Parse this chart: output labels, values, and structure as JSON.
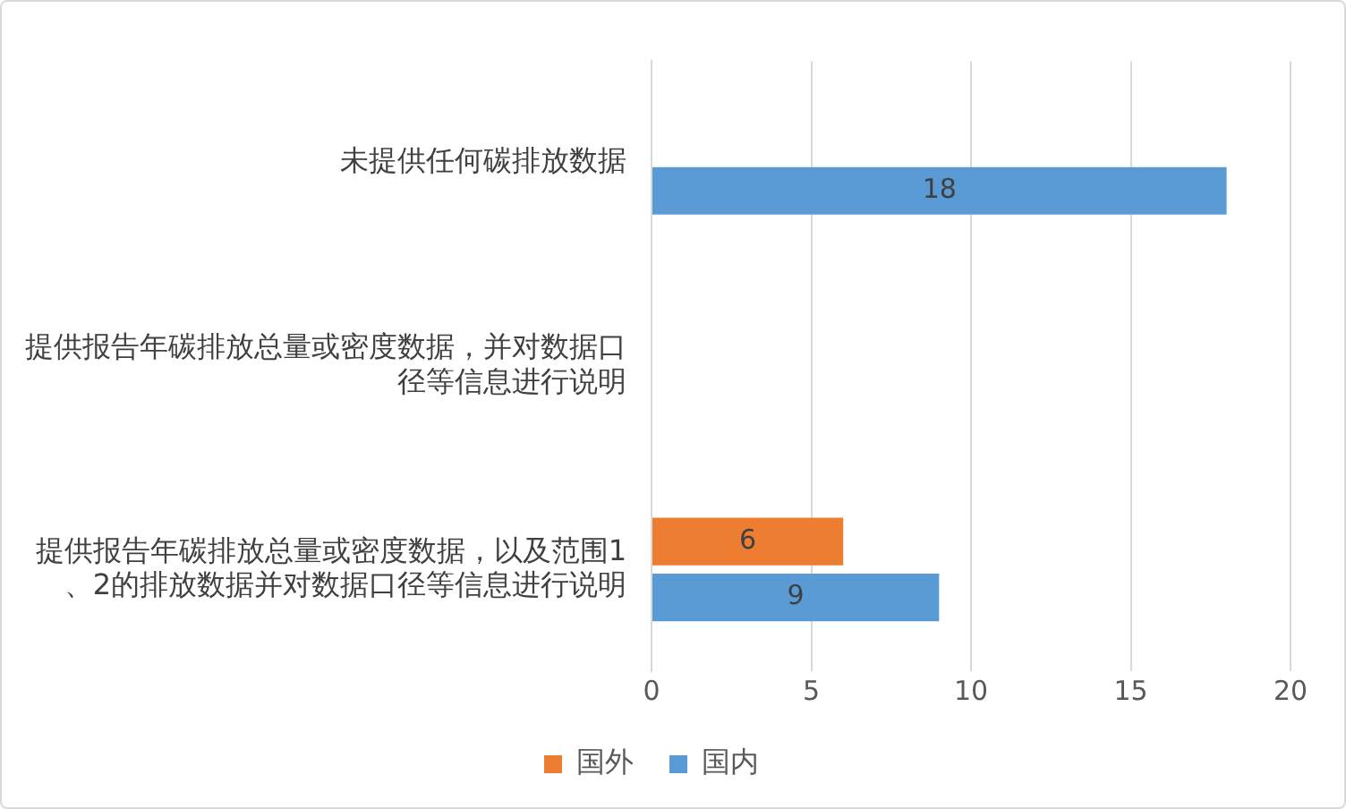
{
  "chart_data": {
    "type": "bar",
    "orientation": "horizontal",
    "categories": [
      "未提供任何碳排放数据",
      "提供报告年碳排放总量或密度数据，并对数据口径等信息进行说明",
      "提供报告年碳排放总量或密度数据，以及范围1、2的排放数据并对数据口径等信息进行说明"
    ],
    "series": [
      {
        "name": "国外",
        "color": "#ed7d31",
        "values": [
          null,
          null,
          6
        ]
      },
      {
        "name": "国内",
        "color": "#5b9bd5",
        "values": [
          18,
          null,
          9
        ]
      }
    ],
    "xlim": [
      0,
      20
    ],
    "xticks": [
      0,
      5,
      10,
      15,
      20
    ],
    "grid": "x",
    "legend": "bottom",
    "data_labels": true
  }
}
